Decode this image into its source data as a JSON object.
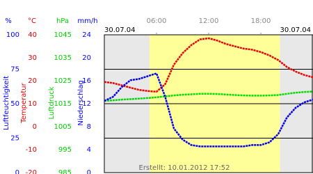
{
  "chart_data": {
    "type": "line",
    "date_left": "30.07.04",
    "date_right": "30.07.04",
    "footer": "Erstellt: 10.01.2012 17:52",
    "xlim": [
      0,
      24
    ],
    "xticks": [
      {
        "value": 6,
        "label": "06:00"
      },
      {
        "value": 12,
        "label": "12:00"
      },
      {
        "value": 18,
        "label": "18:00"
      }
    ],
    "shaded_range": [
      5.2,
      20.2
    ],
    "shaded_color": "#ffff99",
    "background_color": "#e8e8e8",
    "grid": true,
    "axes": [
      {
        "id": "humidity",
        "unit": "%",
        "title": "Luftfeuchtigkeit",
        "color": "#0000ff",
        "ylim": [
          0,
          100
        ],
        "yticks": [
          0,
          25,
          50,
          75,
          100
        ]
      },
      {
        "id": "temperature",
        "unit": "°C",
        "title": "Temperatur",
        "color": "#dd0000",
        "ylim": [
          -20,
          40
        ],
        "yticks": [
          -20,
          -10,
          0,
          10,
          20,
          30,
          40
        ]
      },
      {
        "id": "pressure",
        "unit": "hPa",
        "title": "Luftdruck",
        "color": "#00cc00",
        "ylim": [
          985,
          1045
        ],
        "yticks": [
          985,
          995,
          1005,
          1015,
          1025,
          1035,
          1045
        ]
      },
      {
        "id": "precipitation",
        "unit": "mm/h",
        "title": "Niederschlag",
        "color": "#0000ff",
        "ylim": [
          0,
          24
        ],
        "yticks": [
          0,
          4,
          8,
          12,
          16,
          20,
          24
        ]
      }
    ],
    "x": [
      0,
      1,
      2,
      3,
      4,
      5,
      6,
      7,
      8,
      9,
      10,
      11,
      12,
      13,
      14,
      15,
      16,
      17,
      18,
      19,
      20,
      21,
      22,
      23,
      24
    ],
    "series": [
      {
        "name": "Luftdruck",
        "axis": "pressure",
        "color": "#00dd00",
        "values": [
          1016.2,
          1016.5,
          1016.8,
          1017,
          1017.2,
          1017.5,
          1017.8,
          1018.2,
          1018.6,
          1018.9,
          1019.1,
          1019.3,
          1019.3,
          1019.2,
          1019,
          1018.8,
          1018.6,
          1018.5,
          1018.5,
          1018.6,
          1018.8,
          1019.3,
          1019.8,
          1020.1,
          1020.3
        ]
      },
      {
        "name": "Temperatur",
        "axis": "temperature",
        "color": "#ee0000",
        "values": [
          19.5,
          19,
          18,
          17,
          16,
          15.5,
          15.2,
          18.5,
          27,
          32,
          35.5,
          38,
          38.5,
          37.5,
          36,
          35,
          34,
          33.5,
          32.5,
          31,
          29,
          26,
          24,
          22.5,
          21.5
        ]
      },
      {
        "name": "Luftfeuchtigkeit",
        "axis": "humidity",
        "color": "#0000ee",
        "values": [
          52,
          55,
          62,
          67,
          68,
          70,
          72,
          55,
          32,
          24,
          20,
          19,
          19,
          19,
          19,
          19,
          19,
          20,
          20,
          22,
          28,
          40,
          47,
          51,
          53
        ]
      }
    ]
  }
}
